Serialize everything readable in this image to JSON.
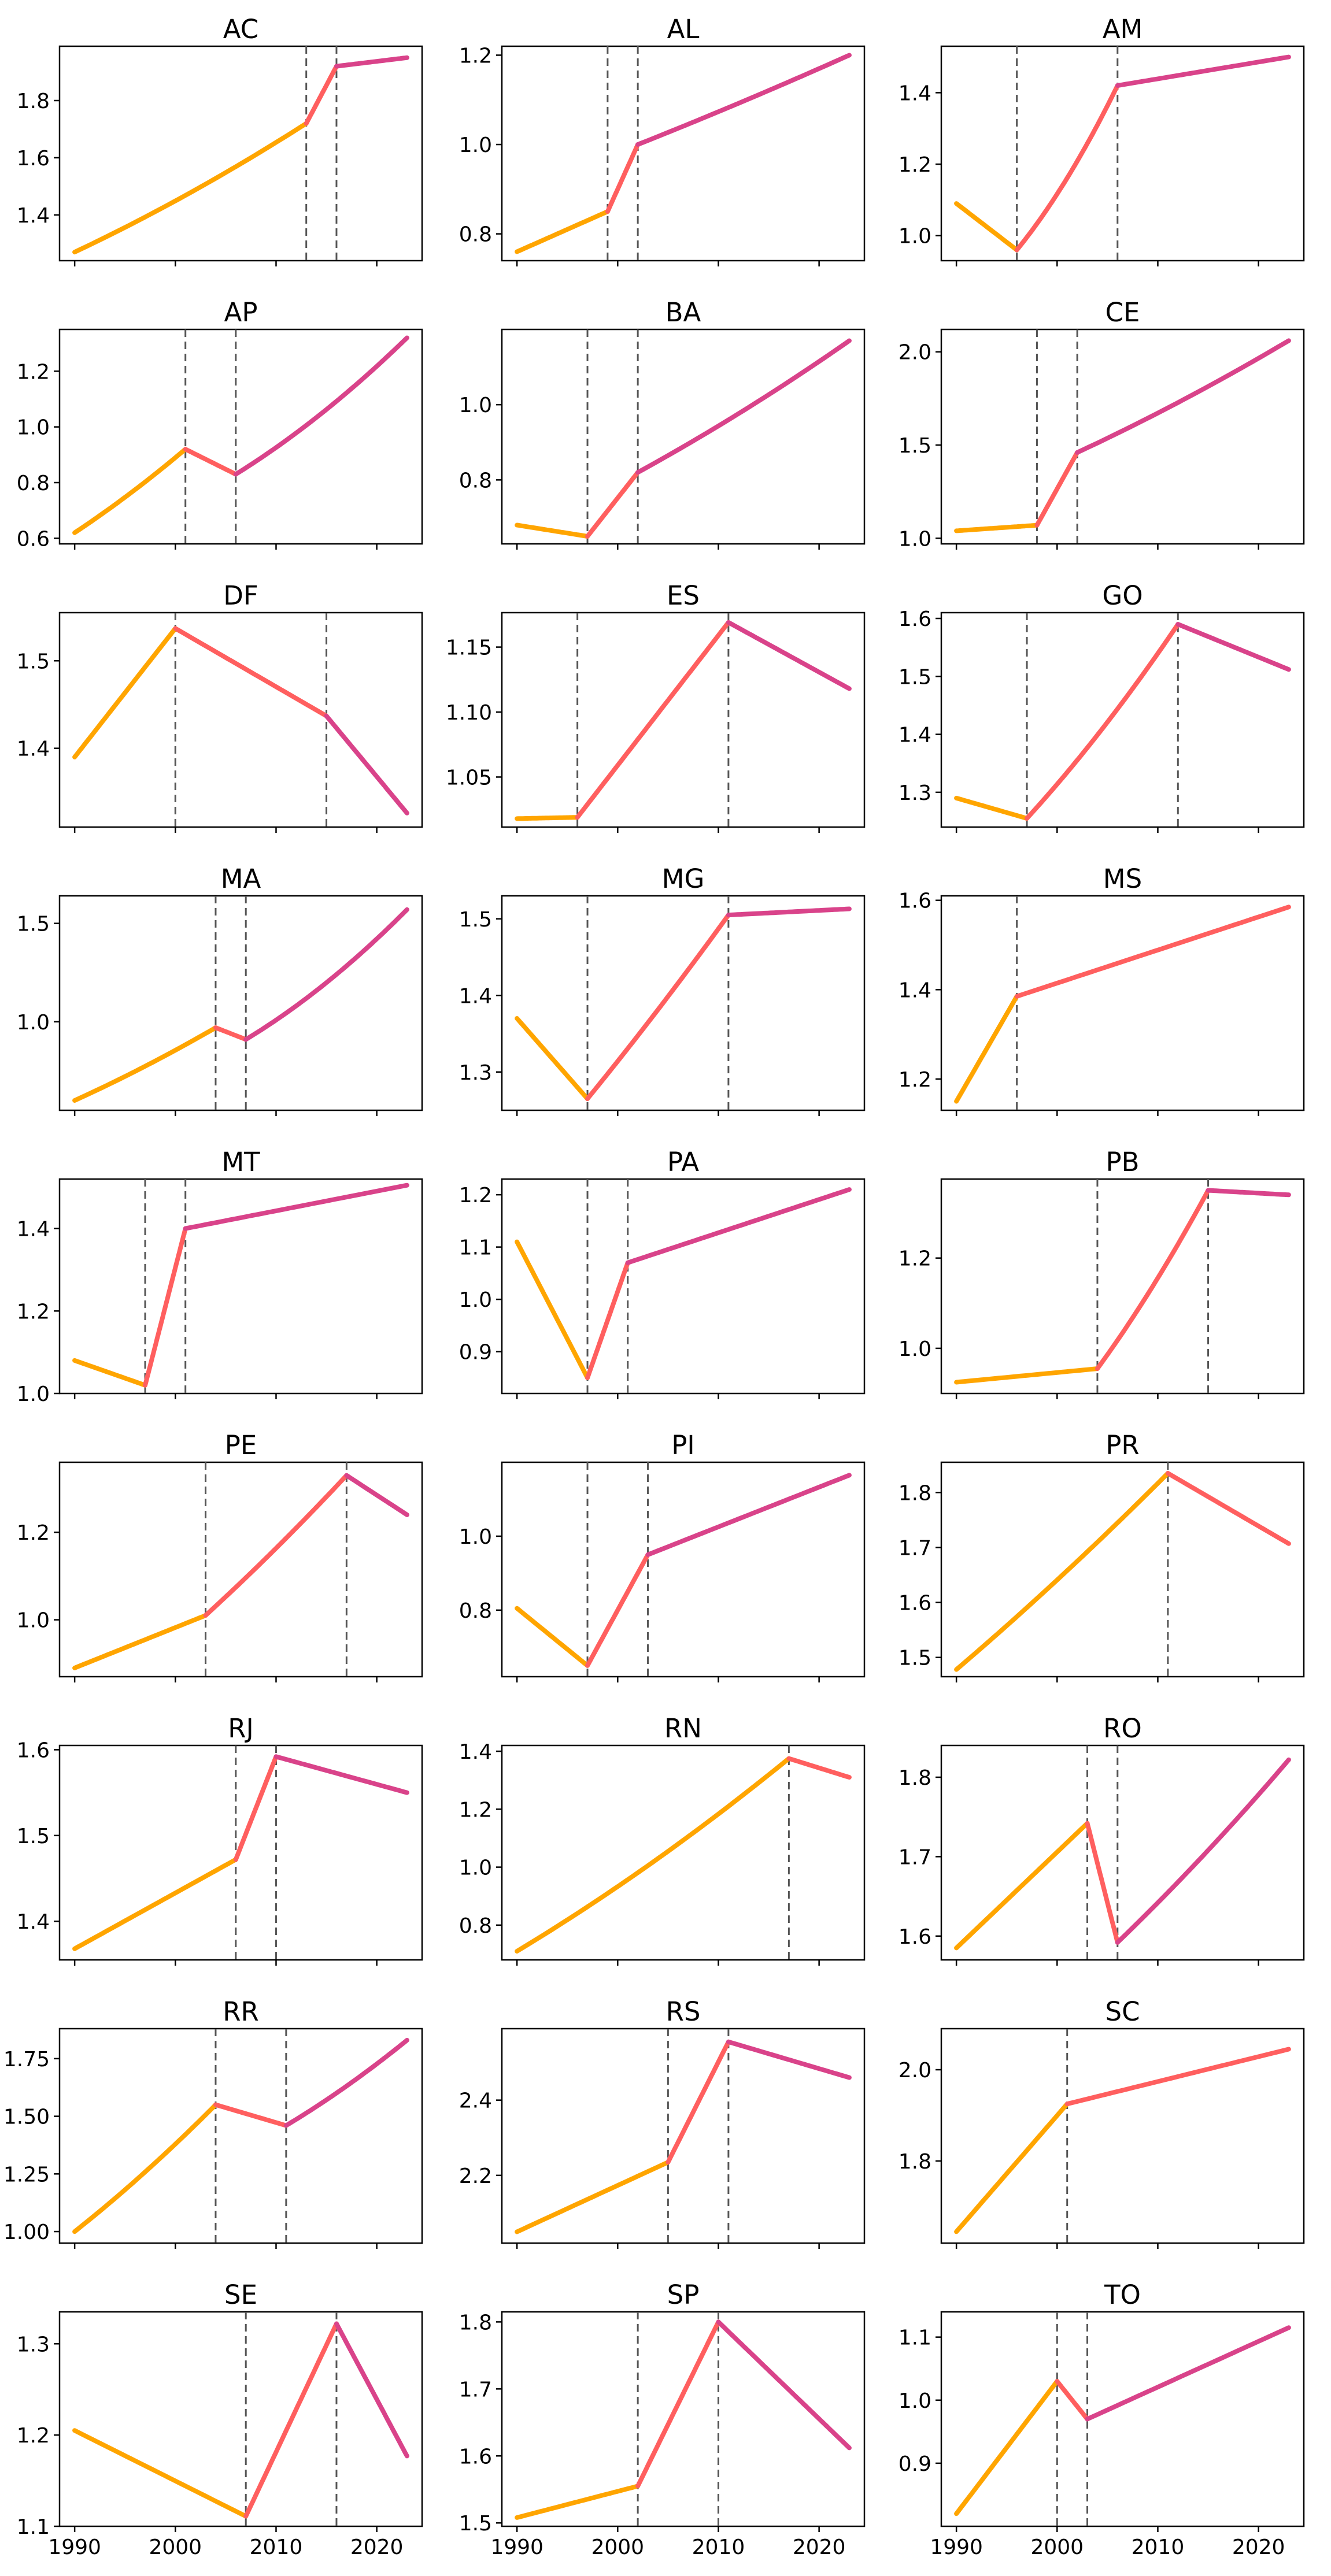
{
  "chart_data": {
    "type": "line",
    "layout": {
      "rows": 9,
      "cols": 3,
      "shared_x": true
    },
    "xlim": [
      1988.5,
      2024.5
    ],
    "x_ticks": [
      1990,
      2000,
      2010,
      2020
    ],
    "x_tick_labels": [
      "1990",
      "2000",
      "2010",
      "2020"
    ],
    "colors": {
      "segment_1": "#FFA500",
      "segment_2": "#FF5F5F",
      "segment_3": "#D9438A",
      "breakpoint_line": "#555555"
    },
    "x_start": 1990,
    "x_end": 2023,
    "panels": [
      {
        "title": "AC",
        "ylim": [
          1.24,
          1.99
        ],
        "y_ticks": [
          1.4,
          1.6,
          1.8
        ],
        "y_tick_labels": [
          "1.4",
          "1.6",
          "1.8"
        ],
        "breakpoints": [
          2013,
          2016
        ],
        "values": [
          1.27,
          1.72,
          1.92,
          1.95
        ],
        "curves": [
          0.15,
          0,
          0
        ]
      },
      {
        "title": "AL",
        "ylim": [
          0.74,
          1.22
        ],
        "y_ticks": [
          0.8,
          1.0,
          1.2
        ],
        "y_tick_labels": [
          "0.8",
          "1.0",
          "1.2"
        ],
        "breakpoints": [
          1999,
          2002
        ],
        "values": [
          0.76,
          0.85,
          1.0,
          1.2
        ],
        "curves": [
          0,
          0,
          0.06
        ]
      },
      {
        "title": "AM",
        "ylim": [
          0.93,
          1.53
        ],
        "y_ticks": [
          1.0,
          1.2,
          1.4
        ],
        "y_tick_labels": [
          "1.0",
          "1.2",
          "1.4"
        ],
        "breakpoints": [
          1996,
          2006
        ],
        "values": [
          1.09,
          0.96,
          1.42,
          1.5
        ],
        "curves": [
          0,
          0.25,
          0
        ]
      },
      {
        "title": "AP",
        "ylim": [
          0.58,
          1.35
        ],
        "y_ticks": [
          0.6,
          0.8,
          1.0,
          1.2
        ],
        "y_tick_labels": [
          "0.6",
          "0.8",
          "1.0",
          "1.2"
        ],
        "breakpoints": [
          2001,
          2006
        ],
        "values": [
          0.62,
          0.92,
          0.83,
          1.32
        ],
        "curves": [
          0.12,
          0,
          0.22
        ]
      },
      {
        "title": "BA",
        "ylim": [
          0.63,
          1.2
        ],
        "y_ticks": [
          0.8,
          1.0
        ],
        "y_tick_labels": [
          "0.8",
          "1.0"
        ],
        "breakpoints": [
          1997,
          2002
        ],
        "values": [
          0.68,
          0.65,
          0.82,
          1.17
        ],
        "curves": [
          0,
          0,
          0.12
        ]
      },
      {
        "title": "CE",
        "ylim": [
          0.97,
          2.12
        ],
        "y_ticks": [
          1.0,
          1.5,
          2.0
        ],
        "y_tick_labels": [
          "1.0",
          "1.5",
          "2.0"
        ],
        "breakpoints": [
          1998,
          2002
        ],
        "values": [
          1.04,
          1.07,
          1.46,
          2.06
        ],
        "curves": [
          0,
          0,
          0.12
        ]
      },
      {
        "title": "DF",
        "ylim": [
          1.31,
          1.555
        ],
        "y_ticks": [
          1.4,
          1.5
        ],
        "y_tick_labels": [
          "1.4",
          "1.5"
        ],
        "breakpoints": [
          2000,
          2015
        ],
        "values": [
          1.39,
          1.537,
          1.437,
          1.326
        ],
        "curves": [
          0,
          0,
          0
        ]
      },
      {
        "title": "ES",
        "ylim": [
          1.0115,
          1.1765
        ],
        "y_ticks": [
          1.05,
          1.1,
          1.15
        ],
        "y_tick_labels": [
          "1.05",
          "1.10",
          "1.15"
        ],
        "breakpoints": [
          1996,
          2011
        ],
        "values": [
          1.018,
          1.019,
          1.169,
          1.118
        ],
        "curves": [
          0,
          0,
          0
        ]
      },
      {
        "title": "GO",
        "ylim": [
          1.24,
          1.61
        ],
        "y_ticks": [
          1.3,
          1.4,
          1.5,
          1.6
        ],
        "y_tick_labels": [
          "1.3",
          "1.4",
          "1.5",
          "1.6"
        ],
        "breakpoints": [
          1997,
          2012
        ],
        "values": [
          1.29,
          1.255,
          1.59,
          1.512
        ],
        "curves": [
          0,
          0.15,
          0
        ]
      },
      {
        "title": "MA",
        "ylim": [
          0.55,
          1.64
        ],
        "y_ticks": [
          1.0,
          1.5
        ],
        "y_tick_labels": [
          "1.0",
          "1.5"
        ],
        "breakpoints": [
          2004,
          2007
        ],
        "values": [
          0.6,
          0.97,
          0.91,
          1.57
        ],
        "curves": [
          0.12,
          0,
          0.25
        ]
      },
      {
        "title": "MG",
        "ylim": [
          1.25,
          1.53
        ],
        "y_ticks": [
          1.3,
          1.4,
          1.5
        ],
        "y_tick_labels": [
          "1.3",
          "1.4",
          "1.5"
        ],
        "breakpoints": [
          1997,
          2011
        ],
        "values": [
          1.37,
          1.265,
          1.505,
          1.513
        ],
        "curves": [
          0,
          0.06,
          0
        ]
      },
      {
        "title": "MS",
        "ylim": [
          1.13,
          1.61
        ],
        "y_ticks": [
          1.2,
          1.4,
          1.6
        ],
        "y_tick_labels": [
          "1.2",
          "1.4",
          "1.6"
        ],
        "breakpoints": [
          1996
        ],
        "values": [
          1.15,
          1.385,
          1.585
        ],
        "curves": [
          0,
          0
        ]
      },
      {
        "title": "MT",
        "ylim": [
          1.0,
          1.52
        ],
        "y_ticks": [
          1.0,
          1.2,
          1.4
        ],
        "y_tick_labels": [
          "1.0",
          "1.2",
          "1.4"
        ],
        "breakpoints": [
          1997,
          2001
        ],
        "values": [
          1.08,
          1.02,
          1.4,
          1.505
        ],
        "curves": [
          0,
          0,
          0
        ]
      },
      {
        "title": "PA",
        "ylim": [
          0.82,
          1.23
        ],
        "y_ticks": [
          0.9,
          1.0,
          1.1,
          1.2
        ],
        "y_tick_labels": [
          "0.9",
          "1.0",
          "1.1",
          "1.2"
        ],
        "breakpoints": [
          1997,
          2001
        ],
        "values": [
          1.11,
          0.85,
          1.07,
          1.21
        ],
        "curves": [
          0,
          0,
          0
        ]
      },
      {
        "title": "PB",
        "ylim": [
          0.9,
          1.375
        ],
        "y_ticks": [
          1.0,
          1.2
        ],
        "y_tick_labels": [
          "1.0",
          "1.2"
        ],
        "breakpoints": [
          2004,
          2015
        ],
        "values": [
          0.925,
          0.955,
          1.35,
          1.34
        ],
        "curves": [
          0,
          0.15,
          0
        ]
      },
      {
        "title": "PE",
        "ylim": [
          0.87,
          1.36
        ],
        "y_ticks": [
          1.0,
          1.2
        ],
        "y_tick_labels": [
          "1.0",
          "1.2"
        ],
        "breakpoints": [
          2003,
          2017
        ],
        "values": [
          0.89,
          1.01,
          1.33,
          1.24
        ],
        "curves": [
          0,
          0.08,
          0
        ]
      },
      {
        "title": "PI",
        "ylim": [
          0.62,
          1.2
        ],
        "y_ticks": [
          0.8,
          1.0
        ],
        "y_tick_labels": [
          "0.8",
          "1.0"
        ],
        "breakpoints": [
          1997,
          2003
        ],
        "values": [
          0.805,
          0.65,
          0.95,
          1.165
        ],
        "curves": [
          0,
          0,
          0
        ]
      },
      {
        "title": "PR",
        "ylim": [
          1.465,
          1.855
        ],
        "y_ticks": [
          1.5,
          1.6,
          1.7,
          1.8
        ],
        "y_tick_labels": [
          "1.5",
          "1.6",
          "1.7",
          "1.8"
        ],
        "breakpoints": [
          2011
        ],
        "values": [
          1.478,
          1.835,
          1.707
        ],
        "curves": [
          0.08,
          0
        ]
      },
      {
        "title": "RJ",
        "ylim": [
          1.355,
          1.605
        ],
        "y_ticks": [
          1.4,
          1.5,
          1.6
        ],
        "y_tick_labels": [
          "1.4",
          "1.5",
          "1.6"
        ],
        "breakpoints": [
          2006,
          2010
        ],
        "values": [
          1.368,
          1.472,
          1.592,
          1.55
        ],
        "curves": [
          0,
          0,
          0
        ]
      },
      {
        "title": "RN",
        "ylim": [
          0.68,
          1.42
        ],
        "y_ticks": [
          0.8,
          1.0,
          1.2,
          1.4
        ],
        "y_tick_labels": [
          "0.8",
          "1.0",
          "1.2",
          "1.4"
        ],
        "breakpoints": [
          2017
        ],
        "values": [
          0.71,
          1.375,
          1.31
        ],
        "curves": [
          0.15,
          0
        ]
      },
      {
        "title": "RO",
        "ylim": [
          1.57,
          1.84
        ],
        "y_ticks": [
          1.6,
          1.7,
          1.8
        ],
        "y_tick_labels": [
          "1.6",
          "1.7",
          "1.8"
        ],
        "breakpoints": [
          2003,
          2006
        ],
        "values": [
          1.585,
          1.742,
          1.592,
          1.822
        ],
        "curves": [
          0,
          0,
          0.1
        ]
      },
      {
        "title": "RR",
        "ylim": [
          0.95,
          1.88
        ],
        "y_ticks": [
          1.0,
          1.25,
          1.5,
          1.75
        ],
        "y_tick_labels": [
          "1.00",
          "1.25",
          "1.50",
          "1.75"
        ],
        "breakpoints": [
          2004,
          2011
        ],
        "values": [
          1.0,
          1.55,
          1.46,
          1.83
        ],
        "curves": [
          0.12,
          0,
          0.15
        ]
      },
      {
        "title": "RS",
        "ylim": [
          2.02,
          2.59
        ],
        "y_ticks": [
          2.2,
          2.4
        ],
        "y_tick_labels": [
          "2.2",
          "2.4"
        ],
        "breakpoints": [
          2005,
          2011
        ],
        "values": [
          2.05,
          2.235,
          2.555,
          2.46
        ],
        "curves": [
          0,
          0,
          0
        ]
      },
      {
        "title": "SC",
        "ylim": [
          1.62,
          2.09
        ],
        "y_ticks": [
          1.8,
          2.0
        ],
        "y_tick_labels": [
          "1.8",
          "2.0"
        ],
        "breakpoints": [
          2001
        ],
        "values": [
          1.645,
          1.925,
          2.045
        ],
        "curves": [
          0,
          0
        ]
      },
      {
        "title": "SE",
        "ylim": [
          1.1,
          1.335
        ],
        "y_ticks": [
          1.1,
          1.2,
          1.3
        ],
        "y_tick_labels": [
          "1.1",
          "1.2",
          "1.3"
        ],
        "breakpoints": [
          2007,
          2016
        ],
        "values": [
          1.205,
          1.111,
          1.322,
          1.177
        ],
        "curves": [
          0,
          0,
          0
        ]
      },
      {
        "title": "SP",
        "ylim": [
          1.495,
          1.815
        ],
        "y_ticks": [
          1.5,
          1.6,
          1.7,
          1.8
        ],
        "y_tick_labels": [
          "1.5",
          "1.6",
          "1.7",
          "1.8"
        ],
        "breakpoints": [
          2002,
          2010
        ],
        "values": [
          1.508,
          1.555,
          1.8,
          1.612
        ],
        "curves": [
          0,
          0,
          0
        ]
      },
      {
        "title": "TO",
        "ylim": [
          0.8,
          1.14
        ],
        "y_ticks": [
          0.9,
          1.0,
          1.1
        ],
        "y_tick_labels": [
          "0.9",
          "1.0",
          "1.1"
        ],
        "breakpoints": [
          2000,
          2003
        ],
        "values": [
          0.82,
          1.03,
          0.97,
          1.115
        ],
        "curves": [
          0,
          0,
          0
        ]
      }
    ]
  }
}
